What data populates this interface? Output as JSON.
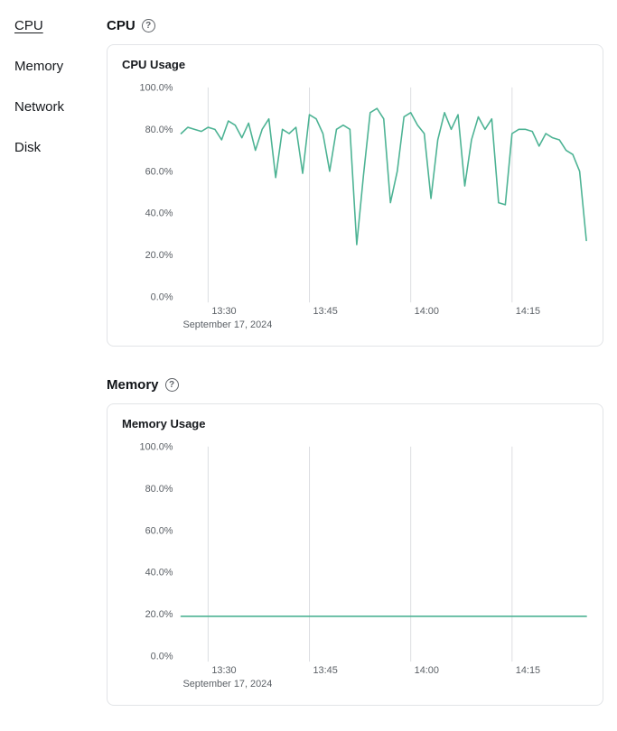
{
  "sidebar": {
    "items": [
      {
        "label": "CPU",
        "active": true
      },
      {
        "label": "Memory",
        "active": false
      },
      {
        "label": "Network",
        "active": false
      },
      {
        "label": "Disk",
        "active": false
      }
    ]
  },
  "sections": [
    {
      "heading": "CPU",
      "help_glyph": "?"
    },
    {
      "heading": "Memory",
      "help_glyph": "?"
    }
  ],
  "chart_data": [
    {
      "type": "line",
      "title": "CPU Usage",
      "x_date_label": "September 17, 2024",
      "xlim": [
        806,
        866
      ],
      "ylim": [
        0,
        100
      ],
      "grid": true,
      "grid_color": "#dcdee1",
      "x_ticks": [
        {
          "min": 810,
          "label": "13:30"
        },
        {
          "min": 825,
          "label": "13:45"
        },
        {
          "min": 840,
          "label": "14:00"
        },
        {
          "min": 855,
          "label": "14:15"
        }
      ],
      "y_ticks": [
        {
          "value": 0,
          "label": "0.0%"
        },
        {
          "value": 20,
          "label": "20.0%"
        },
        {
          "value": 40,
          "label": "40.0%"
        },
        {
          "value": 60,
          "label": "60.0%"
        },
        {
          "value": 80,
          "label": "80.0%"
        },
        {
          "value": 100,
          "label": "100.0%"
        }
      ],
      "series": [
        {
          "name": "cpu-usage-percent",
          "color": "#4db394",
          "x_start_min": 806,
          "step_min": 1,
          "values": [
            78,
            81,
            80,
            79,
            81,
            80,
            75,
            84,
            82,
            76,
            83,
            70,
            80,
            85,
            57,
            80,
            78,
            81,
            59,
            87,
            85,
            78,
            60,
            80,
            82,
            80,
            25,
            58,
            88,
            90,
            85,
            45,
            60,
            86,
            88,
            82,
            78,
            47,
            75,
            88,
            80,
            87,
            53,
            75,
            86,
            80,
            85,
            45,
            44,
            78,
            80,
            80,
            79,
            72,
            78,
            76,
            75,
            70,
            68,
            60,
            27
          ]
        }
      ]
    },
    {
      "type": "line",
      "title": "Memory Usage",
      "x_date_label": "September 17, 2024",
      "xlim": [
        806,
        866
      ],
      "ylim": [
        0,
        100
      ],
      "grid": true,
      "grid_color": "#dcdee1",
      "x_ticks": [
        {
          "min": 810,
          "label": "13:30"
        },
        {
          "min": 825,
          "label": "13:45"
        },
        {
          "min": 840,
          "label": "14:00"
        },
        {
          "min": 855,
          "label": "14:15"
        }
      ],
      "y_ticks": [
        {
          "value": 0,
          "label": "0.0%"
        },
        {
          "value": 20,
          "label": "20.0%"
        },
        {
          "value": 40,
          "label": "40.0%"
        },
        {
          "value": 60,
          "label": "60.0%"
        },
        {
          "value": 80,
          "label": "80.0%"
        },
        {
          "value": 100,
          "label": "100.0%"
        }
      ],
      "series": [
        {
          "name": "memory-usage-percent",
          "color": "#4db394",
          "x_start_min": 806,
          "step_min": 60,
          "values": [
            19,
            19
          ]
        }
      ]
    }
  ]
}
